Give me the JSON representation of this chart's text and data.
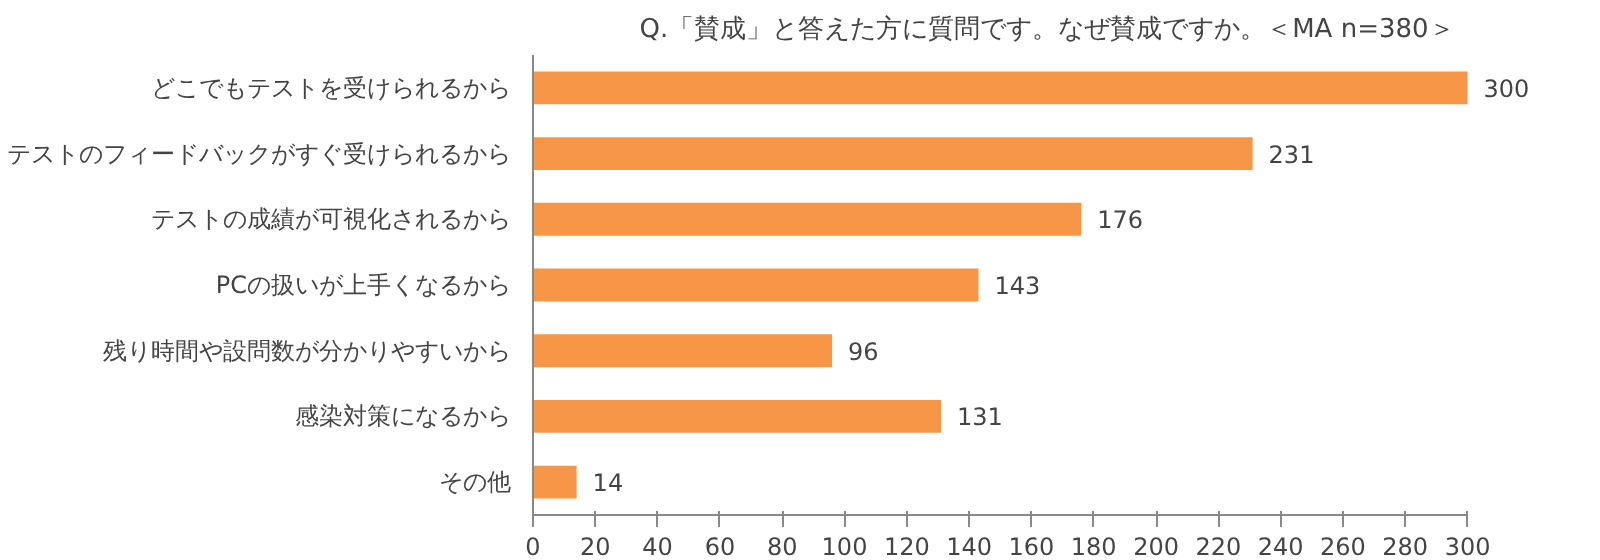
{
  "chart_data": {
    "type": "bar",
    "orientation": "horizontal",
    "title": "Q.「賛成」と答えた方に質問です。なぜ賛成ですか。＜MA n=380＞",
    "categories": [
      "どこでもテストを受けられるから",
      "テストのフィードバックがすぐ受けられるから",
      "テストの成績が可視化されるから",
      "PCの扱いが上手くなるから",
      "残り時間や設問数が分かりやすいから",
      "感染対策になるから",
      "その他"
    ],
    "values": [
      300,
      231,
      176,
      143,
      96,
      131,
      14
    ],
    "color": "#f79646",
    "xlim": [
      0,
      300
    ],
    "xticks": [
      0,
      20,
      40,
      60,
      80,
      100,
      120,
      140,
      160,
      180,
      200,
      220,
      240,
      260,
      280,
      300
    ],
    "grid": false,
    "data_labels": true
  }
}
